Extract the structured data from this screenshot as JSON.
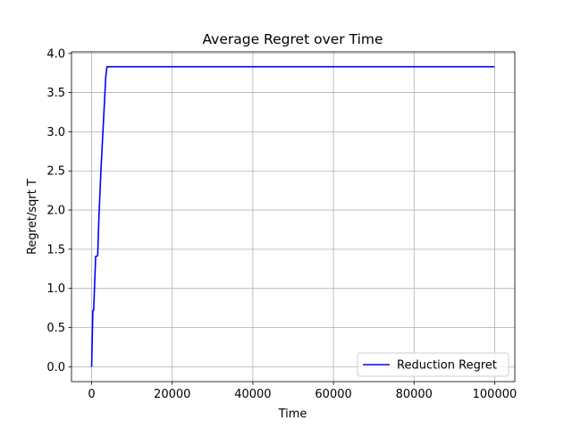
{
  "chart_data": {
    "type": "line",
    "title": "Average Regret over Time",
    "xlabel": "Time",
    "ylabel": "Regret/sqrt T",
    "xlim": [
      -5000,
      105000
    ],
    "ylim": [
      -0.19,
      4.02
    ],
    "xticks": [
      0,
      20000,
      40000,
      60000,
      80000,
      100000
    ],
    "xtick_labels": [
      "0",
      "20000",
      "40000",
      "60000",
      "80000",
      "100000"
    ],
    "yticks": [
      0.0,
      0.5,
      1.0,
      1.5,
      2.0,
      2.5,
      3.0,
      3.5,
      4.0
    ],
    "ytick_labels": [
      "0.0",
      "0.5",
      "1.0",
      "1.5",
      "2.0",
      "2.5",
      "3.0",
      "3.5",
      "4.0"
    ],
    "grid": true,
    "legend_position": "lower-right",
    "series": [
      {
        "name": "Reduction Regret",
        "color": "#0000ff",
        "x": [
          0,
          300,
          500,
          1000,
          1200,
          1500,
          1800,
          2300,
          2800,
          3200,
          3500,
          3800,
          100000
        ],
        "y": [
          0.0,
          0.72,
          0.72,
          1.41,
          1.41,
          1.42,
          1.9,
          2.5,
          3.0,
          3.4,
          3.7,
          3.83,
          3.83
        ]
      }
    ]
  }
}
